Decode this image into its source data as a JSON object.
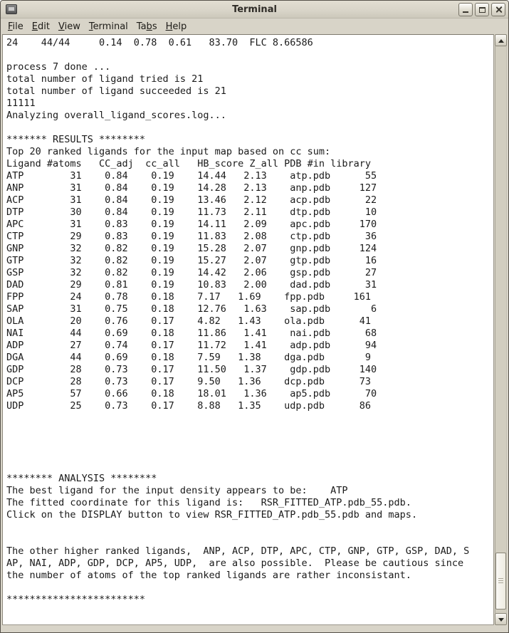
{
  "window": {
    "title": "Terminal"
  },
  "menu": {
    "items": [
      {
        "name": "file",
        "pre": "",
        "accel": "F",
        "post": "ile"
      },
      {
        "name": "edit",
        "pre": "",
        "accel": "E",
        "post": "dit"
      },
      {
        "name": "view",
        "pre": "",
        "accel": "V",
        "post": "iew"
      },
      {
        "name": "terminal",
        "pre": "",
        "accel": "T",
        "post": "erminal"
      },
      {
        "name": "tabs",
        "pre": "Ta",
        "accel": "b",
        "post": "s"
      },
      {
        "name": "help",
        "pre": "",
        "accel": "H",
        "post": "elp"
      }
    ]
  },
  "icons": {
    "window_icon": "terminal-window-icon",
    "minimize": "minimize-icon",
    "maximize": "maximize-icon",
    "close": "close-icon",
    "scroll_up": "arrow-up-icon",
    "scroll_down": "arrow-down-icon",
    "thumb_grip": "scrollbar-grip-icon"
  },
  "colors": {
    "chrome": "#d8d4c8",
    "term_bg": "#ffffff",
    "term_text": "#1a1a1a",
    "trough": "#d2cec0",
    "thumb": "#f2f0e8"
  },
  "terminal": {
    "lines": [
      "24    44/44     0.14  0.78  0.61   83.70  FLC 8.66586",
      "",
      "process 7 done ...",
      "total number of ligand tried is 21",
      "total number of ligand succeeded is 21",
      "11111",
      "Analyzing overall_ligand_scores.log...",
      "",
      "******* RESULTS ********",
      "Top 20 ranked ligands for the input map based on cc sum:",
      "Ligand #atoms   CC_adj  cc_all   HB_score Z_all PDB #in library",
      "ATP        31    0.84    0.19    14.44   2.13    atp.pdb      55",
      "ANP        31    0.84    0.19    14.28   2.13    anp.pdb     127",
      "ACP        31    0.84    0.19    13.46   2.12    acp.pdb      22",
      "DTP        30    0.84    0.19    11.73   2.11    dtp.pdb      10",
      "APC        31    0.83    0.19    14.11   2.09    apc.pdb     170",
      "CTP        29    0.83    0.19    11.83   2.08    ctp.pdb      36",
      "GNP        32    0.82    0.19    15.28   2.07    gnp.pdb     124",
      "GTP        32    0.82    0.19    15.27   2.07    gtp.pdb      16",
      "GSP        32    0.82    0.19    14.42   2.06    gsp.pdb      27",
      "DAD        29    0.81    0.19    10.83   2.00    dad.pdb      31",
      "FPP        24    0.78    0.18    7.17   1.69    fpp.pdb     161",
      "SAP        31    0.75    0.18    12.76   1.63    sap.pdb       6",
      "OLA        20    0.76    0.17    4.82   1.43    ola.pdb      41",
      "NAI        44    0.69    0.18    11.86   1.41    nai.pdb      68",
      "ADP        27    0.74    0.17    11.72   1.41    adp.pdb      94",
      "DGA        44    0.69    0.18    7.59   1.38    dga.pdb       9",
      "GDP        28    0.73    0.17    11.50   1.37    gdp.pdb     140",
      "DCP        28    0.73    0.17    9.50   1.36    dcp.pdb      73",
      "AP5        57    0.66    0.18    18.01   1.36    ap5.pdb      70",
      "UDP        25    0.73    0.17    8.88   1.35    udp.pdb      86",
      "",
      "",
      "",
      "",
      "",
      "******** ANALYSIS ********",
      "The best ligand for the input density appears to be:    ATP",
      "The fitted coordinate for this ligand is:   RSR_FITTED_ATP.pdb_55.pdb.",
      "Click on the DISPLAY button to view RSR_FITTED_ATP.pdb_55.pdb and maps.",
      "",
      "",
      "The other higher ranked ligands,  ANP, ACP, DTP, APC, CTP, GNP, GTP, GSP, DAD, S",
      "AP, NAI, ADP, GDP, DCP, AP5, UDP,  are also possible.  Please be cautious since",
      "the number of atoms of the top ranked ligands are rather inconsistant.",
      "",
      "************************"
    ]
  }
}
